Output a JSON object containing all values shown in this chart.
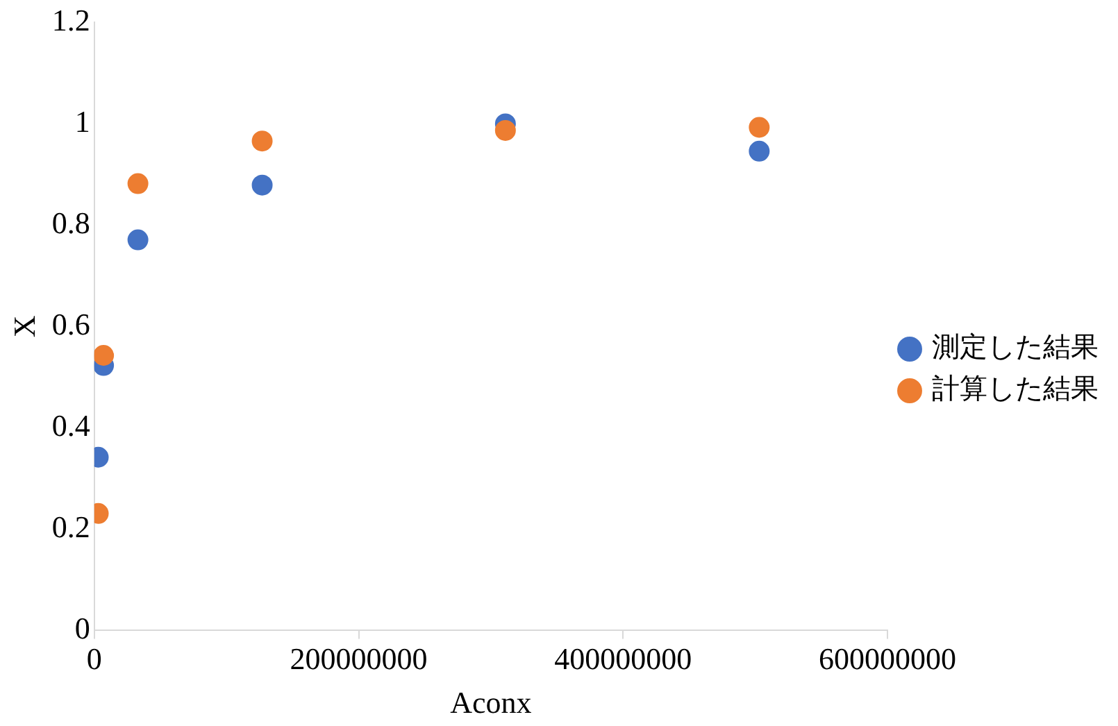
{
  "chart_data": {
    "type": "scatter",
    "xlabel": "Aconx",
    "ylabel": "X",
    "xlim": [
      0,
      600000000
    ],
    "xticks": [
      0,
      200000000,
      400000000,
      600000000
    ],
    "ylim": [
      0,
      1.2
    ],
    "yticks": [
      0,
      0.2,
      0.4,
      0.6,
      0.8,
      1,
      1.2
    ],
    "grid": false,
    "legend": "right",
    "marker": "circle",
    "series": [
      {
        "name": "測定した結果",
        "color": "#4472c4",
        "x": [
          3000000,
          7000000,
          33000000,
          127000000,
          311000000,
          503000000
        ],
        "values": [
          0.342,
          0.523,
          0.771,
          0.879,
          1.0,
          0.946
        ]
      },
      {
        "name": "計算した結果",
        "color": "#ed7d31",
        "x": [
          3000000,
          7000000,
          33000000,
          127000000,
          311000000,
          503000000
        ],
        "values": [
          0.231,
          0.543,
          0.882,
          0.966,
          0.987,
          0.993
        ]
      }
    ]
  }
}
